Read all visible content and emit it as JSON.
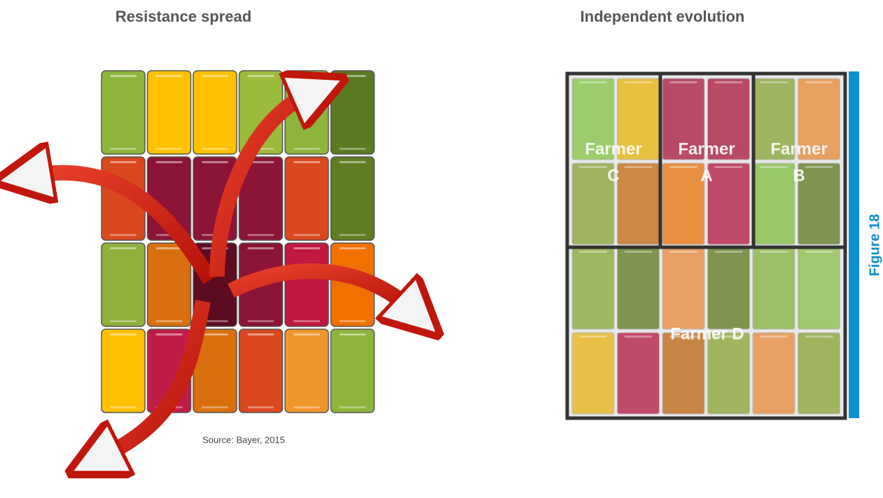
{
  "left": {
    "title": "Resistance spread",
    "source": "Source: Bayer, 2015"
  },
  "right": {
    "title": "Independent evolution",
    "farmers": [
      {
        "lines": [
          "Farmer",
          "C"
        ]
      },
      {
        "lines": [
          "Farmer",
          "A"
        ]
      },
      {
        "lines": [
          "Farmer",
          "B"
        ]
      },
      {
        "lines": [
          "Farmer D"
        ]
      }
    ],
    "figure_label": "Figure 18"
  }
}
